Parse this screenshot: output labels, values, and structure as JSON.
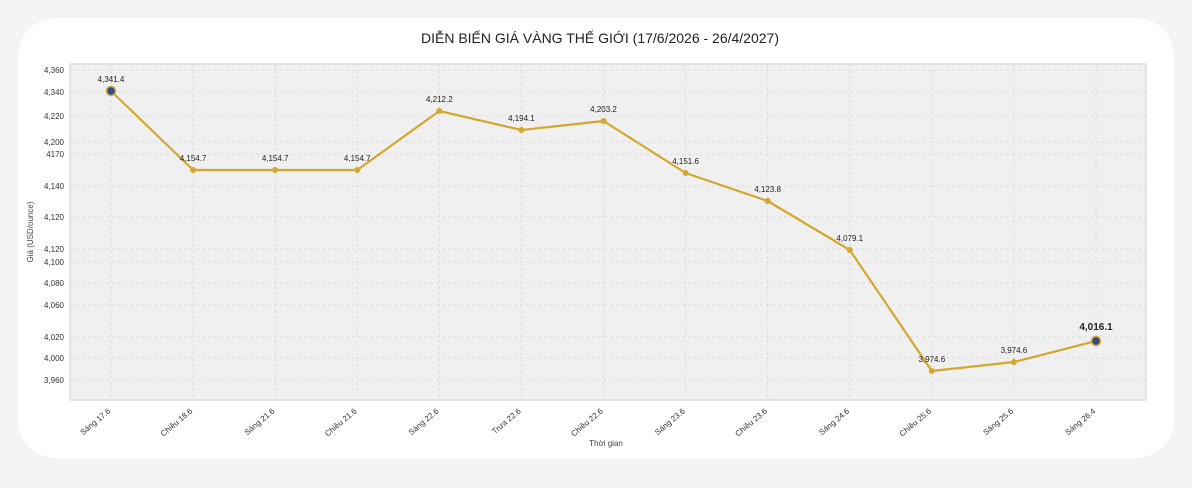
{
  "chart_data": {
    "type": "line",
    "title": "DIỄN BIẾN GIÁ VÀNG THẾ GIỚI (17/6/2026 - 26/4/2027)",
    "xlabel": "Thời gian",
    "ylabel": "Giá (USD/ounce)",
    "categories": [
      "Sáng 17.6",
      "Chiều 18.6",
      "Sáng 21.6",
      "Chiều 21.6",
      "Sáng 22.6",
      "Trưa 22.6",
      "Chiều 22.6",
      "Sáng 23.6",
      "Chiều 23.6",
      "Sáng 24.6",
      "Chiều 25.6",
      "Sáng 25.6",
      "Sáng 26.4"
    ],
    "values": [
      4341.4,
      4154.7,
      4154.7,
      4154.7,
      4212.2,
      4194.1,
      4203.2,
      4151.6,
      4123.8,
      4079.1,
      3974.6,
      3974.6,
      4016.1
    ],
    "value_labels": [
      "4,341.4",
      "4,154.7",
      "4,154.7",
      "4,154.7",
      "4,212.2",
      "4,194.1",
      "4,203.2",
      "4,151.6",
      "4,123.8",
      "4,079.1",
      "3,974.6",
      "3,974.6",
      "4,016.1"
    ],
    "ytick_labels": [
      "4,360",
      "4,340",
      "4,220",
      "4,200",
      "4170",
      "4,140",
      "4,120",
      "4,120",
      "4,100",
      "4,080",
      "4,060",
      "4,020",
      "4,000",
      "3,960"
    ],
    "grid": true,
    "line_color": "#d4a82e",
    "highlight_marker_color": "#2f4a8a",
    "plot_background": "#f0f0f0"
  }
}
